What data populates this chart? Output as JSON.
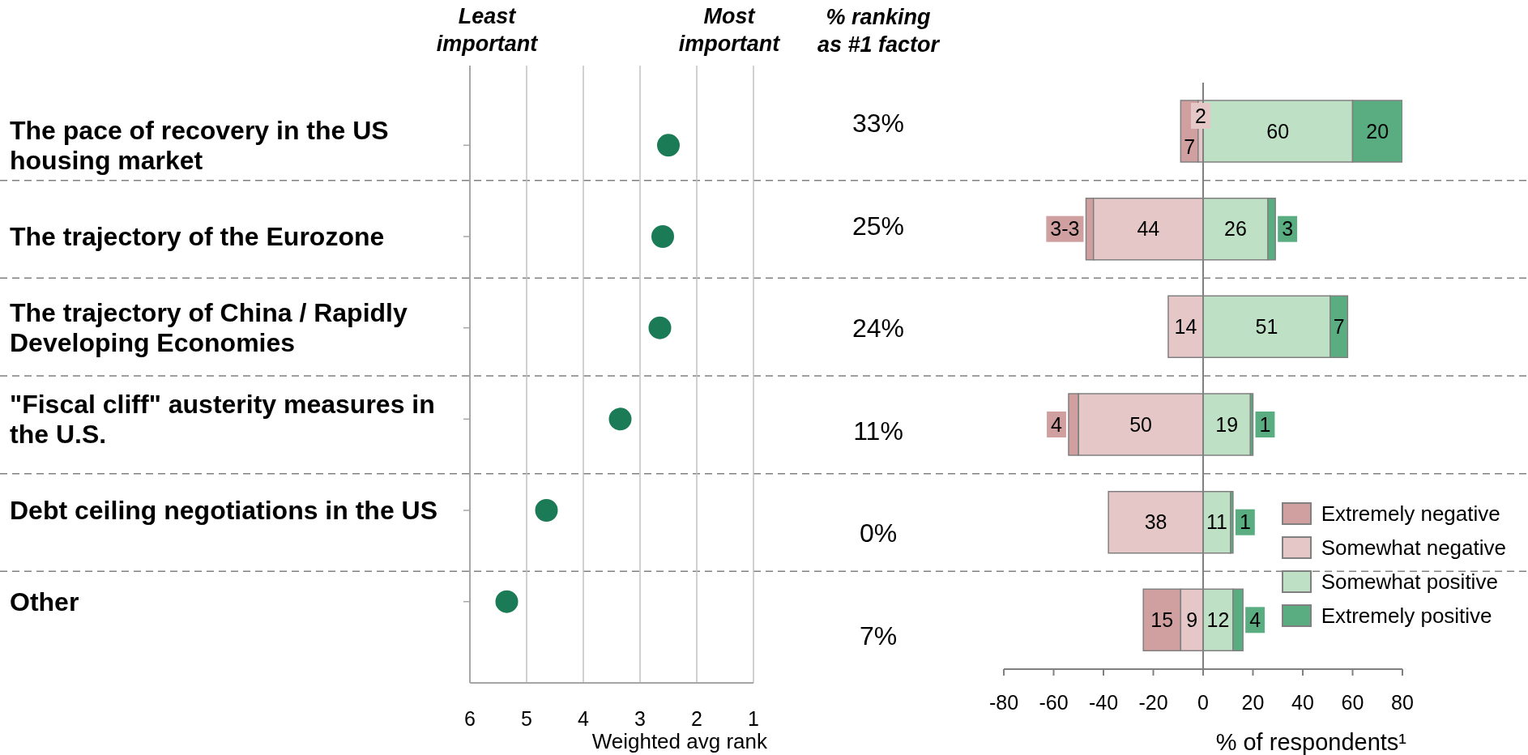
{
  "chart_data": [
    {
      "type": "scatter",
      "orientation": "horizontal",
      "categories": [
        "The pace of recovery in the US housing market",
        "The trajectory of the Eurozone",
        "The trajectory of China / Rapidly Developing Economies",
        "\"Fiscal cliff\" austerity measures in the U.S.",
        "Debt ceiling negotiations in the US",
        "Other"
      ],
      "values": [
        2.5,
        2.6,
        2.65,
        3.35,
        4.65,
        5.35
      ],
      "color": "#1b7b57",
      "marker": "circle",
      "xlim": [
        6,
        1
      ],
      "xticks": [
        6,
        5,
        4,
        3,
        2,
        1
      ],
      "xlabel": "Weighted avg rank",
      "grid": "x",
      "annotations": [
        "Least important",
        "Most important"
      ]
    },
    {
      "type": "other",
      "title": "% ranking as #1 factor",
      "annotations": [
        "33%",
        "25%",
        "24%",
        "11%",
        "0%",
        "7%"
      ]
    },
    {
      "type": "bar",
      "orientation": "horizontal",
      "categories": [
        null,
        null,
        null,
        null,
        null,
        null
      ],
      "tick_labels": "x",
      "xlim": [
        -80,
        80
      ],
      "xticks": [
        -80,
        -60,
        -40,
        -20,
        0,
        20,
        40,
        60,
        80
      ],
      "xlabel": "% of respondents¹",
      "grid": "y",
      "legend": "bottom right",
      "data_labels": true,
      "ref_lines": [
        {
          "axis": "x",
          "value": 0
        }
      ],
      "series": [
        {
          "name": "Extremely negative",
          "color": "#d0a0a0",
          "values": [
            7,
            3,
            null,
            4,
            null,
            15
          ],
          "base": [
            -9,
            -47,
            null,
            -54,
            null,
            -24
          ],
          "value_labels": [
            "7",
            "3-3",
            null,
            "4",
            null,
            "15"
          ]
        },
        {
          "name": "Somewhat negative",
          "color": "#e6c7c8",
          "values": [
            2,
            44,
            14,
            50,
            38,
            9
          ],
          "base": [
            -2,
            -44,
            -14,
            -50,
            -38,
            -9
          ]
        },
        {
          "name": "Somewhat positive",
          "color": "#bee0c4",
          "values": [
            60,
            26,
            51,
            19,
            11,
            12
          ],
          "base": [
            0,
            0,
            0,
            0,
            0,
            0
          ]
        },
        {
          "name": "Extremely positive",
          "color": "#5aad80",
          "values": [
            20,
            3,
            7,
            1,
            1,
            4
          ],
          "base": [
            60,
            26,
            51,
            19,
            11,
            12
          ]
        }
      ]
    }
  ]
}
